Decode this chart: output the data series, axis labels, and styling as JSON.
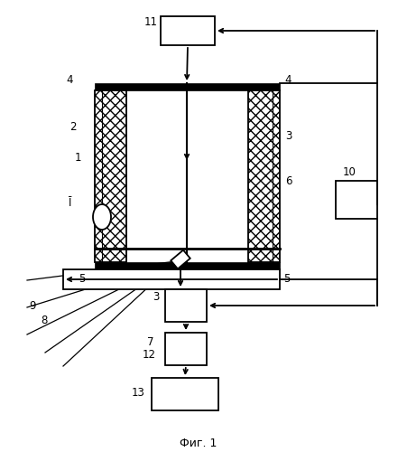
{
  "title": "Фиг. 1",
  "bg_color": "#ffffff",
  "line_color": "#000000",
  "figsize": [
    4.41,
    5.0
  ],
  "dpi": 100,
  "lw": 1.3
}
